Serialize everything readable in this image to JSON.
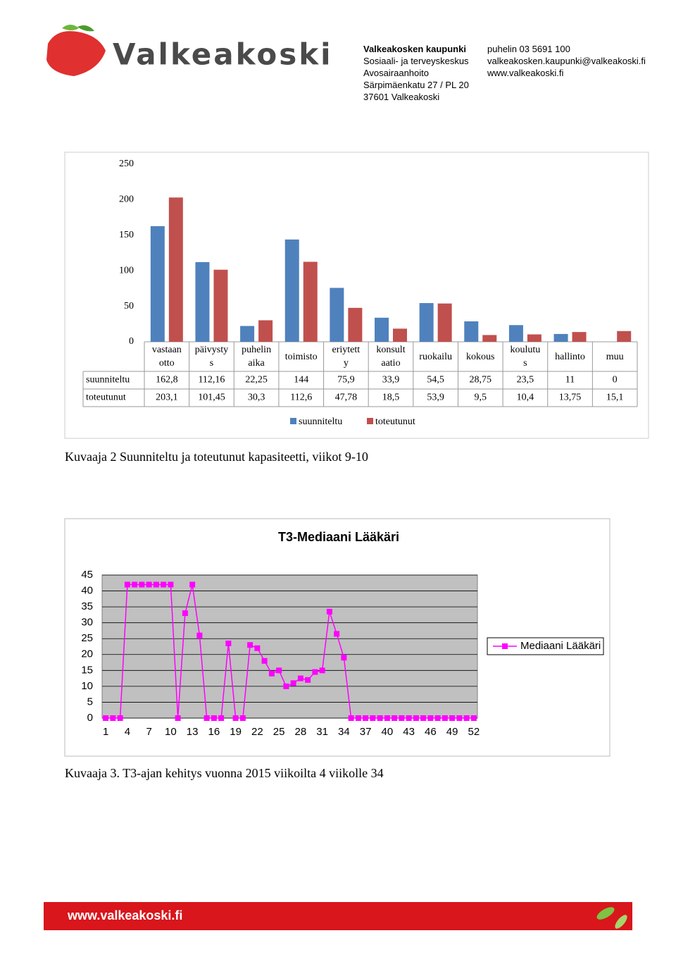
{
  "header": {
    "logo_text": "Valkeakoski",
    "address": [
      "Valkeakosken kaupunki",
      "Sosiaali- ja terveyskeskus",
      "Avosairaanhoito",
      "Särpimäenkatu 27 / PL 20",
      "37601 Valkeakoski"
    ],
    "contact": [
      "puhelin 03 5691 100",
      "valkeakosken.kaupunki@valkeakoski.fi",
      "www.valkeakoski.fi"
    ]
  },
  "chart_data": [
    {
      "type": "bar",
      "categories": [
        "vastaan\notto",
        "päivysty\ns",
        "puhelin\naika",
        "toimisto",
        "eriytett\ny",
        "konsult\naatio",
        "ruokailu",
        "kokous",
        "koulutu\ns",
        "hallinto",
        "muu"
      ],
      "series": [
        {
          "name": "suunniteltu",
          "color": "#4f81bd",
          "values": [
            162.8,
            112.16,
            22.25,
            144,
            75.9,
            33.9,
            54.5,
            28.75,
            23.5,
            11,
            0
          ],
          "value_labels": [
            "162,8",
            "112,16",
            "22,25",
            "144",
            "75,9",
            "33,9",
            "54,5",
            "28,75",
            "23,5",
            "11",
            "0"
          ]
        },
        {
          "name": "toteutunut",
          "color": "#c0504d",
          "values": [
            203.1,
            101.45,
            30.3,
            112.6,
            47.78,
            18.5,
            53.9,
            9.5,
            10.4,
            13.75,
            15.1
          ],
          "value_labels": [
            "203,1",
            "101,45",
            "30,3",
            "112,6",
            "47,78",
            "18,5",
            "53,9",
            "9,5",
            "10,4",
            "13,75",
            "15,1"
          ]
        }
      ],
      "ylim": [
        0,
        250
      ],
      "yticks": [
        0,
        50,
        100,
        150,
        200,
        250
      ],
      "legend": "bottom"
    },
    {
      "type": "line",
      "title": "T3-Mediaani Lääkäri",
      "x": [
        1,
        2,
        3,
        4,
        5,
        6,
        7,
        8,
        9,
        10,
        11,
        12,
        13,
        14,
        15,
        16,
        17,
        18,
        19,
        20,
        21,
        22,
        23,
        24,
        25,
        26,
        27,
        28,
        29,
        30,
        31,
        32,
        33,
        34,
        35,
        36,
        37,
        38,
        39,
        40,
        41,
        42,
        43,
        44,
        45,
        46,
        47,
        48,
        49,
        50,
        51,
        52
      ],
      "series": [
        {
          "name": "Mediaani Lääkäri",
          "color": "#ff00ff",
          "values": [
            0,
            0,
            0,
            42,
            42,
            42,
            42,
            42,
            42,
            42,
            0,
            33,
            42,
            26,
            0,
            0,
            0,
            23.5,
            0,
            0,
            23,
            22,
            18,
            14,
            15,
            10,
            11,
            12.5,
            12,
            14.5,
            15,
            33.5,
            26.5,
            19,
            0,
            0,
            0,
            0,
            0,
            0,
            0,
            0,
            0,
            0,
            0,
            0,
            0,
            0,
            0,
            0,
            0,
            0
          ]
        }
      ],
      "xlim": [
        0.5,
        52.5
      ],
      "xticks": [
        1,
        4,
        7,
        10,
        13,
        16,
        19,
        22,
        25,
        28,
        31,
        34,
        37,
        40,
        43,
        46,
        49,
        52
      ],
      "ylim": [
        0,
        45
      ],
      "yticks": [
        0,
        5,
        10,
        15,
        20,
        25,
        30,
        35,
        40,
        45
      ],
      "grid": true,
      "legend": "right"
    }
  ],
  "captions": [
    "Kuvaaja 2 Suunniteltu ja toteutunut kapasiteetti, viikot 9-10",
    "Kuvaaja 3. T3-ajan kehitys vuonna 2015 viikoilta 4 viikolle 34"
  ],
  "footer": {
    "url": "www.valkeakoski.fi"
  }
}
